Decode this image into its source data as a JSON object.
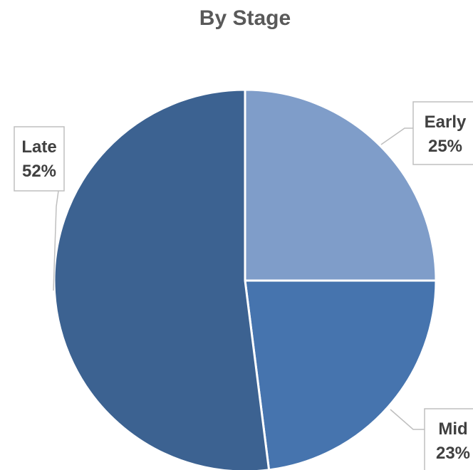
{
  "chart_data": {
    "type": "pie",
    "title": "By Stage",
    "slices": [
      {
        "name": "Early",
        "value": 25,
        "label": "25%",
        "color": "#7f9dc9"
      },
      {
        "name": "Mid",
        "value": 23,
        "label": "23%",
        "color": "#4674ae"
      },
      {
        "name": "Late",
        "value": 52,
        "label": "52%",
        "color": "#3c6291"
      }
    ],
    "start_angle": "12 o'clock",
    "direction": "clockwise",
    "legend": "none",
    "data_labels": "category name and percentage"
  }
}
